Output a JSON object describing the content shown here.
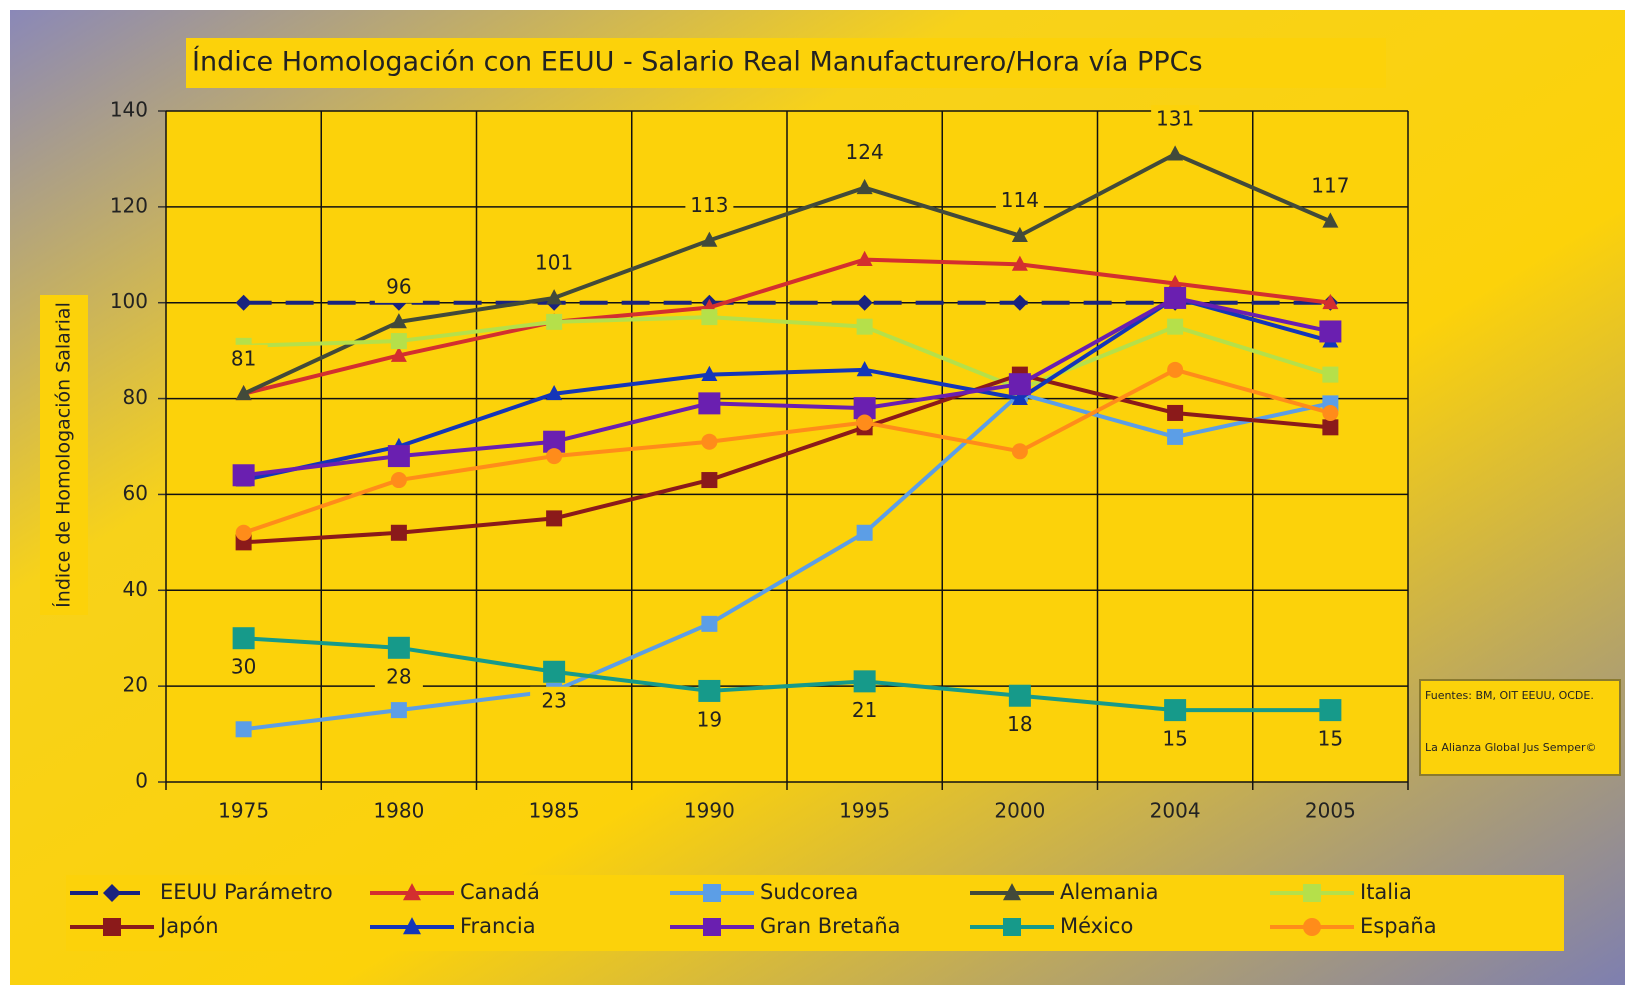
{
  "chart_data": {
    "type": "line",
    "title": "Índice Homologación con EEUU - Salario Real Manufacturero/Hora vía PPCs",
    "y_label": "Índice de Homologación Salarial",
    "source": [
      "Fuentes: BM, OIT EEUU, OCDE.",
      "La Alianza Global Jus Semper©"
    ],
    "categories": [
      "1975",
      "1980",
      "1985",
      "1990",
      "1995",
      "2000",
      "2004",
      "2005"
    ],
    "ylim": [
      0,
      140
    ],
    "yticks": [
      0,
      20,
      40,
      60,
      80,
      100,
      120,
      140
    ],
    "grid": true,
    "series": [
      {
        "name": "EEUU Parámetro",
        "color": "#1a237e",
        "marker": "diamond",
        "dash": true,
        "values": [
          100,
          100,
          100,
          100,
          100,
          100,
          100,
          100
        ]
      },
      {
        "name": "Canadá",
        "color": "#d32f2f",
        "marker": "triangle",
        "values": [
          81,
          89,
          96,
          99,
          109,
          108,
          104,
          100
        ]
      },
      {
        "name": "Sudcorea",
        "color": "#5c9ee6",
        "marker": "square",
        "values": [
          11,
          15,
          19,
          33,
          52,
          81,
          72,
          79
        ]
      },
      {
        "name": "Alemania",
        "color": "#424a3a",
        "marker": "triangle",
        "data_labels": "above",
        "values": [
          81,
          96,
          101,
          113,
          124,
          114,
          131,
          117
        ]
      },
      {
        "name": "Italia",
        "color": "#b5e04a",
        "marker": "square",
        "values": [
          91,
          92,
          96,
          97,
          95,
          82,
          95,
          85
        ]
      },
      {
        "name": "Japón",
        "color": "#8b1a1a",
        "marker": "square",
        "values": [
          50,
          52,
          55,
          63,
          74,
          85,
          77,
          74
        ]
      },
      {
        "name": "Francia",
        "color": "#1436b8",
        "marker": "triangle",
        "values": [
          63,
          70,
          81,
          85,
          86,
          80,
          101,
          92
        ]
      },
      {
        "name": "Gran Bretaña",
        "color": "#6a1fb0",
        "marker": "square",
        "values": [
          64,
          68,
          71,
          79,
          78,
          83,
          101,
          94
        ]
      },
      {
        "name": "México",
        "color": "#169a8a",
        "marker": "square",
        "data_labels": "below",
        "values": [
          30,
          28,
          23,
          19,
          21,
          18,
          15,
          15
        ]
      },
      {
        "name": "España",
        "color": "#ff8c1a",
        "marker": "circle",
        "values": [
          52,
          63,
          68,
          71,
          75,
          69,
          86,
          77
        ]
      }
    ]
  }
}
